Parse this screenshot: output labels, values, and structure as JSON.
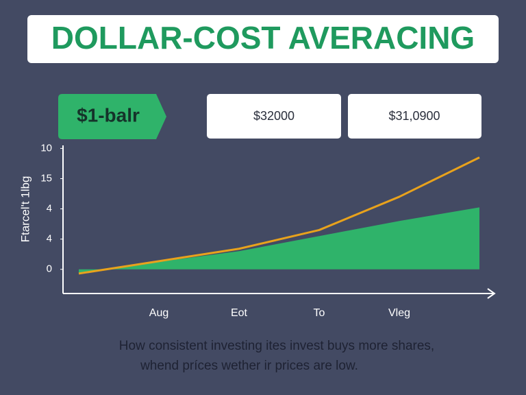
{
  "chart_data": {
    "type": "line",
    "title": "DOLLAR-COST AVERACING",
    "tag": "$1-balr",
    "boxes": [
      "$32000",
      "$31,0900"
    ],
    "ylabel": "Ftarcel't 1lbg",
    "caption": [
      "How consistent investing ites invest buys more shares,",
      "whend príces wether ir prices are low."
    ],
    "categories": [
      null,
      "Aug",
      "Eot",
      "To",
      "Vleg",
      null
    ],
    "series": [
      {
        "name": null,
        "kind": "area",
        "color": "#2fb36a",
        "values": [
          -0.14,
          0.25,
          0.6,
          1.1,
          1.6,
          2.05
        ]
      },
      {
        "name": null,
        "kind": "line",
        "color": "#e8a21c",
        "values": [
          -0.14,
          0.27,
          0.68,
          1.3,
          2.4,
          3.7
        ]
      }
    ],
    "ylim": [
      -0.8,
      4.1
    ],
    "yticks": [
      {
        "value": 0,
        "label": "0"
      },
      {
        "value": 1,
        "label": "4"
      },
      {
        "value": 2,
        "label": "4"
      },
      {
        "value": 3,
        "label": "15"
      },
      {
        "value": 4,
        "label": "10"
      }
    ]
  }
}
